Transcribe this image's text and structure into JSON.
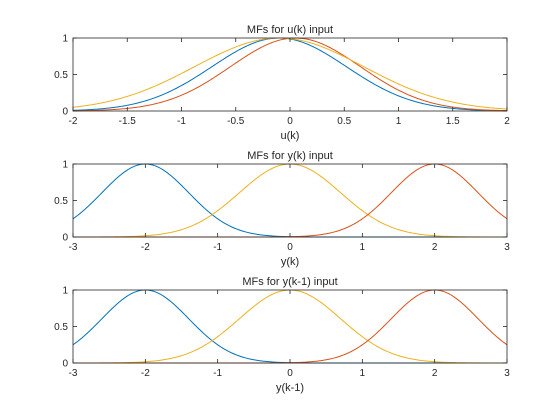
{
  "chart_data": [
    {
      "type": "line",
      "title": "MFs for u(k) input",
      "xlabel": "u(k)",
      "ylabel": "",
      "xlim": [
        -2,
        2
      ],
      "ylim": [
        0,
        1
      ],
      "xticks": [
        -2,
        -1.5,
        -1,
        -0.5,
        0,
        0.5,
        1,
        1.5,
        2
      ],
      "xtick_labels": [
        "-2",
        "-1.5",
        "-1",
        "-0.5",
        "0",
        "0.5",
        "1",
        "1.5",
        "2"
      ],
      "yticks": [
        0,
        0.5,
        1
      ],
      "ytick_labels": [
        "0",
        "0.5",
        "1"
      ],
      "grid": false,
      "series": [
        {
          "color": "#0072BD",
          "shape": "gaussian",
          "center": -0.1,
          "sigma": 0.62
        },
        {
          "color": "#D95319",
          "shape": "gaussian",
          "center": 0.05,
          "sigma": 0.6
        },
        {
          "color": "#EDB120",
          "shape": "gaussian",
          "center": -0.1,
          "sigma": 0.78
        }
      ]
    },
    {
      "type": "line",
      "title": "MFs for y(k) input",
      "xlabel": "y(k)",
      "ylabel": "",
      "xlim": [
        -3,
        3
      ],
      "ylim": [
        0,
        1
      ],
      "xticks": [
        -3,
        -2,
        -1,
        0,
        1,
        2,
        3
      ],
      "xtick_labels": [
        "-3",
        "-2",
        "-1",
        "0",
        "1",
        "2",
        "3"
      ],
      "yticks": [
        0,
        0.5,
        1
      ],
      "ytick_labels": [
        "0",
        "0.5",
        "1"
      ],
      "grid": false,
      "series": [
        {
          "color": "#0072BD",
          "shape": "gaussian",
          "center": -2.0,
          "sigma": 0.6
        },
        {
          "color": "#EDB120",
          "shape": "gaussian",
          "center": 0.0,
          "sigma": 0.7
        },
        {
          "color": "#D95319",
          "shape": "gaussian",
          "center": 2.0,
          "sigma": 0.6
        }
      ]
    },
    {
      "type": "line",
      "title": "MFs for y(k-1) input",
      "xlabel": "y(k-1)",
      "ylabel": "",
      "xlim": [
        -3,
        3
      ],
      "ylim": [
        0,
        1
      ],
      "xticks": [
        -3,
        -2,
        -1,
        0,
        1,
        2,
        3
      ],
      "xtick_labels": [
        "-3",
        "-2",
        "-1",
        "0",
        "1",
        "2",
        "3"
      ],
      "yticks": [
        0,
        0.5,
        1
      ],
      "ytick_labels": [
        "0",
        "0.5",
        "1"
      ],
      "grid": false,
      "series": [
        {
          "color": "#0072BD",
          "shape": "gaussian",
          "center": -2.0,
          "sigma": 0.6
        },
        {
          "color": "#EDB120",
          "shape": "gaussian",
          "center": 0.0,
          "sigma": 0.7
        },
        {
          "color": "#D95319",
          "shape": "gaussian",
          "center": 2.0,
          "sigma": 0.6
        }
      ]
    }
  ]
}
